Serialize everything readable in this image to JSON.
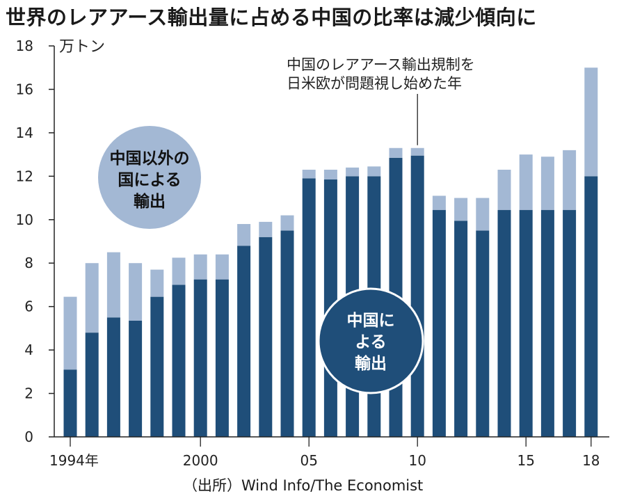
{
  "title": "世界のレアアース輸出量に占める中国の比率は減少傾向に",
  "source": "（出所）Wind Info/The Economist",
  "chart_data": {
    "type": "bar",
    "stacked": true,
    "unit_label": "万トン",
    "ylim": [
      0,
      18
    ],
    "y_ticks": [
      0,
      2,
      4,
      6,
      8,
      10,
      12,
      14,
      16,
      18
    ],
    "years": [
      1994,
      1995,
      1996,
      1997,
      1998,
      1999,
      2000,
      2001,
      2002,
      2003,
      2004,
      2005,
      2006,
      2007,
      2008,
      2009,
      2010,
      2011,
      2012,
      2013,
      2014,
      2015,
      2016,
      2017,
      2018
    ],
    "x_tick_labels": [
      {
        "year": 1994,
        "label": "1994年"
      },
      {
        "year": 2000,
        "label": "2000"
      },
      {
        "year": 2005,
        "label": "05"
      },
      {
        "year": 2010,
        "label": "10"
      },
      {
        "year": 2015,
        "label": "15"
      },
      {
        "year": 2018,
        "label": "18"
      }
    ],
    "series": [
      {
        "name": "中国による輸出",
        "color": "#1f4e79",
        "values": [
          3.1,
          4.8,
          5.5,
          5.35,
          6.45,
          7.0,
          7.25,
          7.25,
          8.8,
          9.2,
          9.5,
          11.9,
          11.85,
          12.0,
          12.0,
          12.85,
          12.95,
          10.45,
          9.95,
          9.5,
          10.45,
          10.45,
          10.45,
          10.45,
          12.0
        ]
      },
      {
        "name": "中国以外の国による輸出",
        "color": "#a3b8d4",
        "values": [
          3.35,
          3.2,
          3.0,
          2.65,
          1.25,
          1.25,
          1.15,
          1.15,
          1.0,
          0.7,
          0.7,
          0.4,
          0.45,
          0.4,
          0.45,
          0.45,
          0.35,
          0.65,
          1.05,
          1.5,
          1.85,
          2.55,
          2.45,
          2.75,
          5.0
        ]
      }
    ],
    "circle_labels": {
      "outside": [
        "中国以外の",
        "国による",
        "輸出"
      ],
      "china": [
        "中国に",
        "よる",
        "輸出"
      ]
    },
    "annotation": {
      "lines": [
        "中国のレアアース輸出規制を",
        "日米欧が問題視し始めた年"
      ],
      "year": 2010
    }
  }
}
